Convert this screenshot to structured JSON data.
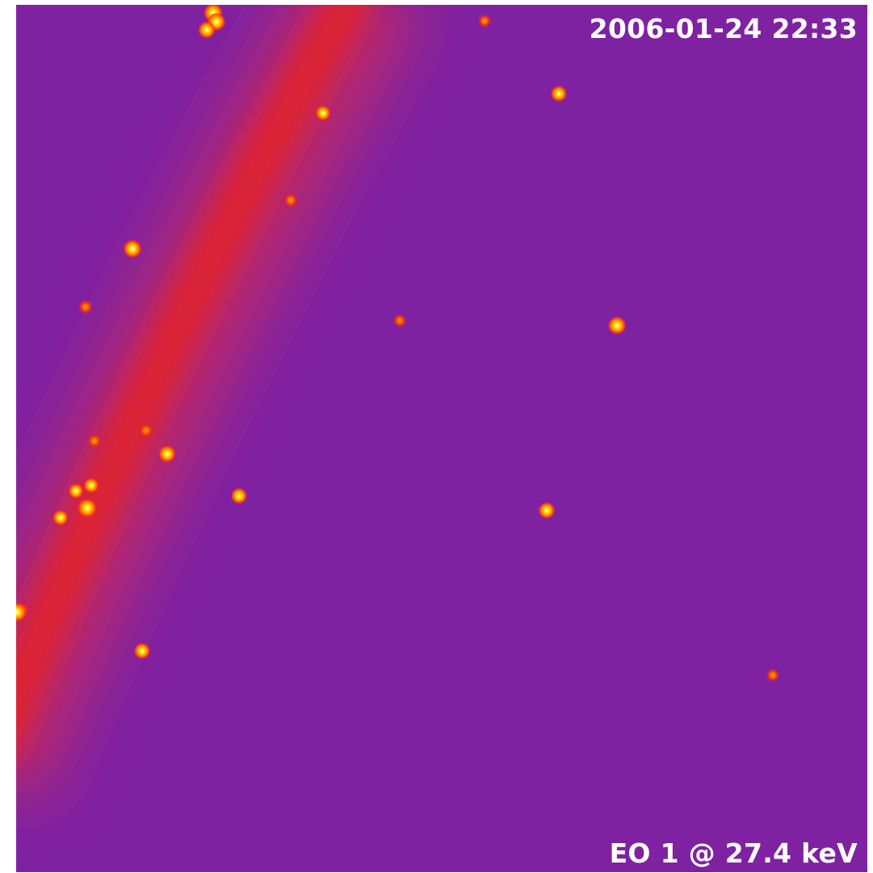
{
  "image": {
    "timestamp": "2006-01-24 22:33",
    "energy_label": "EO 1 @ 27.4 keV"
  },
  "colors": {
    "background": "#7f22a2",
    "arc_core": "#e4202a",
    "arc_mid": "#c82450",
    "source_core": "#ffffd0",
    "source_mid": "#ffd000",
    "source_halo": "#ff5000",
    "text": "#ffffff"
  },
  "sources_brightness": [
    1.0,
    0.9,
    0.8,
    0.4,
    0.7,
    0.6,
    0.5,
    0.9,
    0.5,
    0.4,
    0.9,
    0.5,
    0.5,
    0.8,
    0.6,
    0.6,
    0.7,
    0.75,
    0.65,
    1.0,
    0.5,
    1.0,
    0.7,
    0.4
  ]
}
